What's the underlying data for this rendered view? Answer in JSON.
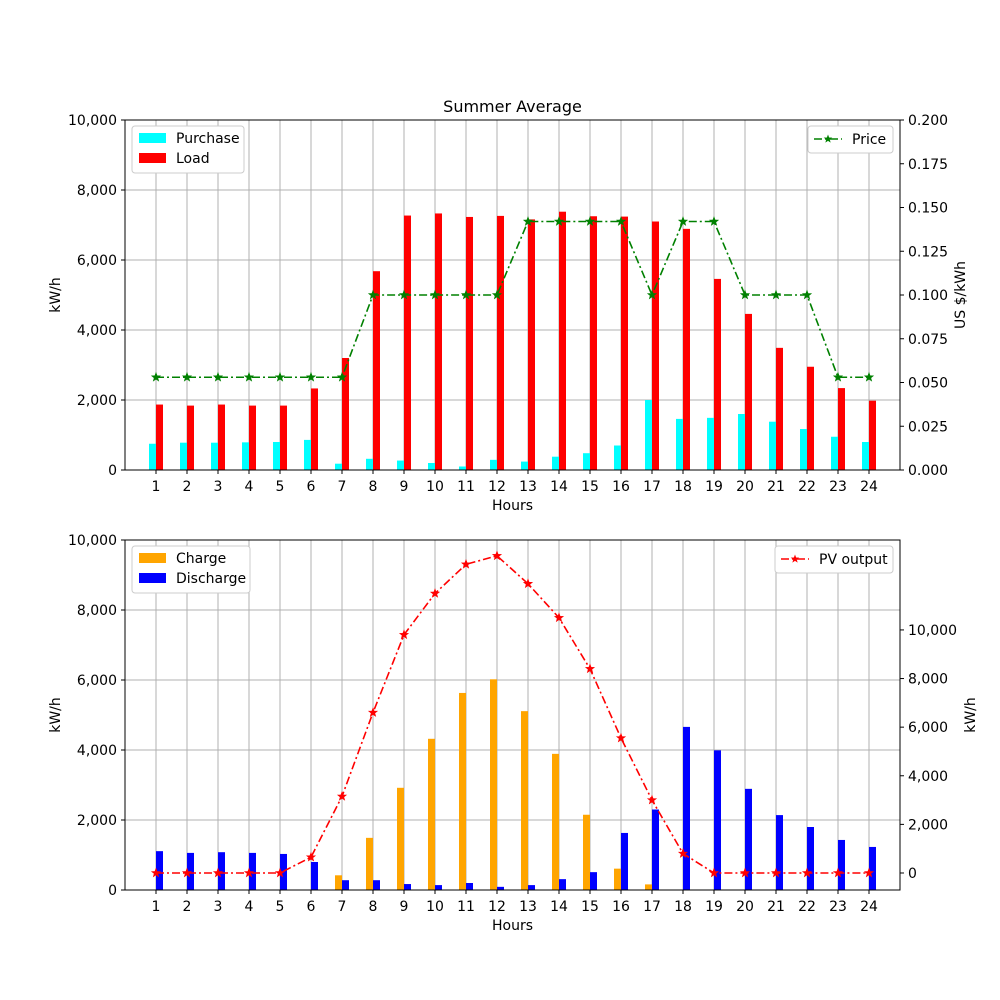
{
  "chart_data": [
    {
      "type": "bar",
      "title": "Summer Average",
      "xlabel": "Hours",
      "ylabel": "kW/h",
      "y2label": "US $/kWh",
      "ylim": [
        0,
        10000
      ],
      "y2lim": [
        0,
        0.2
      ],
      "yticks": [
        "0",
        "2,000",
        "4,000",
        "6,000",
        "8,000",
        "10,000"
      ],
      "y2ticks": [
        "0.000",
        "0.025",
        "0.050",
        "0.075",
        "0.100",
        "0.125",
        "0.150",
        "0.175",
        "0.200"
      ],
      "categories": [
        "1",
        "2",
        "3",
        "4",
        "5",
        "6",
        "7",
        "8",
        "9",
        "10",
        "11",
        "12",
        "13",
        "14",
        "15",
        "16",
        "17",
        "18",
        "19",
        "20",
        "21",
        "22",
        "23",
        "24"
      ],
      "grid": true,
      "series": [
        {
          "name": "Purchase",
          "kind": "bar",
          "color": "#00ffff",
          "values": [
            750,
            780,
            780,
            790,
            800,
            860,
            180,
            320,
            270,
            200,
            100,
            290,
            240,
            380,
            480,
            700,
            2000,
            1460,
            1490,
            1600,
            1380,
            1170,
            950,
            800
          ]
        },
        {
          "name": "Load",
          "kind": "bar",
          "color": "#ff0000",
          "values": [
            1870,
            1840,
            1870,
            1840,
            1840,
            2330,
            3200,
            5680,
            7270,
            7330,
            7230,
            7260,
            7160,
            7380,
            7250,
            7240,
            7100,
            6890,
            5460,
            4460,
            3490,
            2950,
            2340,
            1980
          ]
        },
        {
          "name": "Price",
          "kind": "line",
          "axis": "right",
          "color": "#008000",
          "values": [
            0.053,
            0.053,
            0.053,
            0.053,
            0.053,
            0.053,
            0.053,
            0.1,
            0.1,
            0.1,
            0.1,
            0.1,
            0.142,
            0.142,
            0.142,
            0.142,
            0.1,
            0.142,
            0.142,
            0.1,
            0.1,
            0.1,
            0.053,
            0.053
          ]
        }
      ],
      "legend_left": "upper-left",
      "legend_right": "upper-right"
    },
    {
      "type": "bar",
      "title": "",
      "xlabel": "Hours",
      "ylabel": "kW/h",
      "y2label": "kW/h",
      "ylim": [
        0,
        10000
      ],
      "y2lim": [
        -700,
        13700
      ],
      "yticks": [
        "0",
        "2,000",
        "4,000",
        "6,000",
        "8,000",
        "10,000"
      ],
      "y2ticks": [
        "0",
        "2,000",
        "4,000",
        "6,000",
        "8,000",
        "10,000"
      ],
      "categories": [
        "1",
        "2",
        "3",
        "4",
        "5",
        "6",
        "7",
        "8",
        "9",
        "10",
        "11",
        "12",
        "13",
        "14",
        "15",
        "16",
        "17",
        "18",
        "19",
        "20",
        "21",
        "22",
        "23",
        "24"
      ],
      "grid": true,
      "series": [
        {
          "name": "Charge",
          "kind": "bar",
          "color": "#ffa500",
          "values": [
            0,
            0,
            0,
            0,
            0,
            0,
            420,
            1490,
            2920,
            4320,
            5630,
            6020,
            5110,
            3890,
            2150,
            610,
            160,
            0,
            0,
            0,
            0,
            0,
            0,
            0
          ]
        },
        {
          "name": "Discharge",
          "kind": "bar",
          "color": "#0000ff",
          "values": [
            1110,
            1060,
            1080,
            1060,
            1030,
            800,
            280,
            280,
            170,
            140,
            200,
            90,
            140,
            310,
            510,
            1630,
            2300,
            4660,
            3990,
            2890,
            2140,
            1800,
            1430,
            1230
          ]
        },
        {
          "name": "PV output",
          "kind": "line",
          "axis": "right",
          "color": "#ff0000",
          "values": [
            0,
            0,
            0,
            0,
            0,
            650,
            3150,
            6600,
            9800,
            11500,
            12700,
            13050,
            11900,
            10500,
            8400,
            5550,
            3000,
            800,
            0,
            0,
            0,
            0,
            0,
            0
          ]
        }
      ],
      "legend_left": "upper-left",
      "legend_right": "upper-right"
    }
  ]
}
